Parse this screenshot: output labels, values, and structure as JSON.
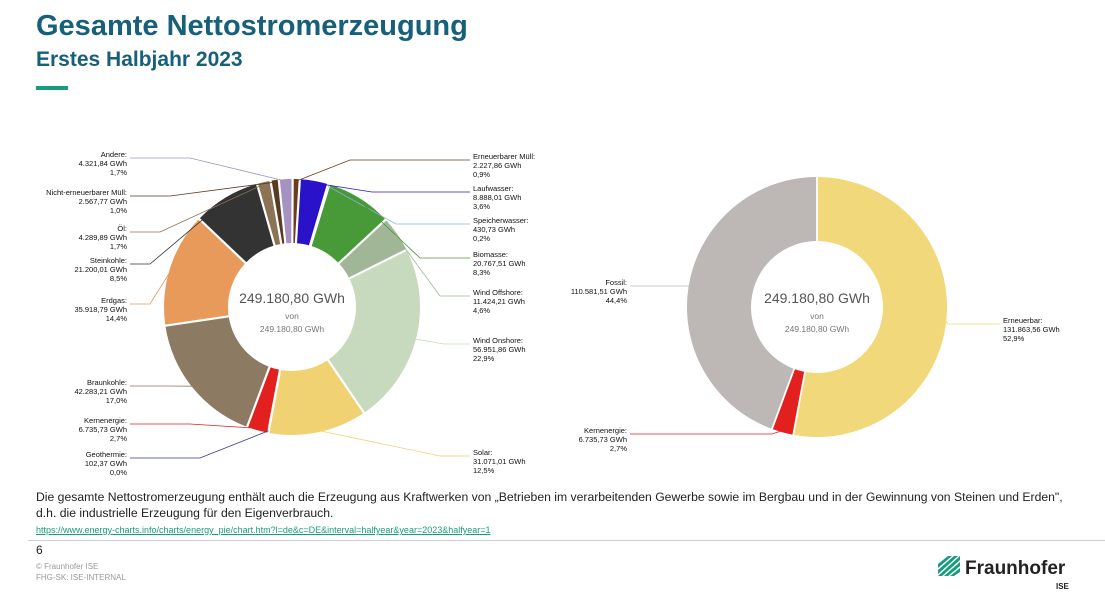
{
  "header": {
    "title": "Gesamte Nettostromerzeugung",
    "subtitle": "Erstes Halbjahr 2023"
  },
  "chart_data": [
    {
      "type": "pie",
      "donut": true,
      "center": {
        "total": "249.180,80 GWh",
        "of": "von",
        "total_small": "249.180,80 GWh"
      },
      "slices": [
        {
          "name": "Erneuerbarer Müll:",
          "value": 2227.86,
          "value_label": "2.227,86 GWh",
          "percent": "0,9%",
          "color": "#6b3d1a"
        },
        {
          "name": "Laufwasser:",
          "value": 8888.01,
          "value_label": "8.888,01 GWh",
          "percent": "3,6%",
          "color": "#2a12c8"
        },
        {
          "name": "Speicherwasser:",
          "value": 430.73,
          "value_label": "430,73 GWh",
          "percent": "0,2%",
          "color": "#8fb3e0"
        },
        {
          "name": "Biomasse:",
          "value": 20767.51,
          "value_label": "20.767,51 GWh",
          "percent": "8,3%",
          "color": "#479a37"
        },
        {
          "name": "Wind Offshore:",
          "value": 11424.21,
          "value_label": "11.424,21 GWh",
          "percent": "4,6%",
          "color": "#a1b597"
        },
        {
          "name": "Wind Onshore:",
          "value": 56951.86,
          "value_label": "56.951,86 GWh",
          "percent": "22,9%",
          "color": "#c8dabd"
        },
        {
          "name": "Solar:",
          "value": 31071.01,
          "value_label": "31.071,01 GWh",
          "percent": "12,5%",
          "color": "#f1d272"
        },
        {
          "name": "Geothermie:",
          "value": 102.37,
          "value_label": "102,37 GWh",
          "percent": "0,0%",
          "color": "#3a3a8c"
        },
        {
          "name": "Kernenergie:",
          "value": 6735.73,
          "value_label": "6.735,73 GWh",
          "percent": "2,7%",
          "color": "#e2201e"
        },
        {
          "name": "Braunkohle:",
          "value": 42283.21,
          "value_label": "42.283,21 GWh",
          "percent": "17,0%",
          "color": "#8c7a62"
        },
        {
          "name": "Erdgas:",
          "value": 35918.79,
          "value_label": "35.918,79 GWh",
          "percent": "14,4%",
          "color": "#e89a5a"
        },
        {
          "name": "Steinkohle:",
          "value": 21200.01,
          "value_label": "21.200,01 GWh",
          "percent": "8,5%",
          "color": "#333333"
        },
        {
          "name": "Öl:",
          "value": 4289.89,
          "value_label": "4.289,89 GWh",
          "percent": "1,7%",
          "color": "#8c7356"
        },
        {
          "name": "Nicht-erneuerbarer Müll:",
          "value": 2567.77,
          "value_label": "2.567,77 GWh",
          "percent": "1,0%",
          "color": "#5a3a20"
        },
        {
          "name": "Andere:",
          "value": 4321.84,
          "value_label": "4.321,84 GWh",
          "percent": "1,7%",
          "color": "#a592c0"
        }
      ]
    },
    {
      "type": "pie",
      "donut": true,
      "center": {
        "total": "249.180,80 GWh",
        "of": "von",
        "total_small": "249.180,80 GWh"
      },
      "slices": [
        {
          "name": "Erneuerbar:",
          "value": 131863.56,
          "value_label": "131.863,56 GWh",
          "percent": "52,9%",
          "color": "#f1d87a"
        },
        {
          "name": "Kernenergie:",
          "value": 6735.73,
          "value_label": "6.735,73 GWh",
          "percent": "2,7%",
          "color": "#e2201e"
        },
        {
          "name": "Fossil:",
          "value": 110581.51,
          "value_label": "110.581,51 GWh",
          "percent": "44,4%",
          "color": "#bdb7b5"
        }
      ]
    }
  ],
  "footnote": "Die gesamte Nettostromerzeugung enthält auch die Erzeugung aus Kraftwerken von „Betrieben im verarbeitenden Gewerbe sowie im Bergbau und in der Gewinnung von Steinen und Erden\", d.h. die industrielle Erzeugung für den Eigenverbrauch.",
  "source_url": "https://www.energy-charts.info/charts/energy_pie/chart.htm?l=de&c=DE&interval=halfyear&year=2023&halfyear=1",
  "footer": {
    "page_number": "6",
    "copyright": "© Fraunhofer ISE",
    "classification": "FHG-SK: ISE-INTERNAL",
    "logo_name": "Fraunhofer",
    "logo_sub": "ISE"
  },
  "colors": {
    "brand_title": "#17607a",
    "brand_green": "#179c7d"
  }
}
